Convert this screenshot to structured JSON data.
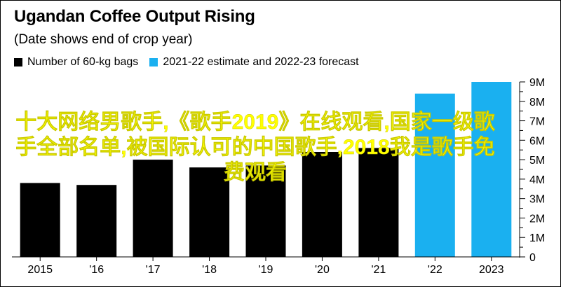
{
  "chart_data": {
    "type": "bar",
    "title": "Ugandan Coffee Output Rising",
    "subtitle": "(Date shows end of crop year)",
    "categories": [
      "2015",
      "'16",
      "'17",
      "'18",
      "'19",
      "'20",
      "'21",
      "'22",
      "2023"
    ],
    "series": [
      {
        "name": "Number of 60-kg bags",
        "color": "#000000",
        "values": [
          3.8,
          3.7,
          5.0,
          4.6,
          4.7,
          5.4,
          5.6,
          null,
          null
        ]
      },
      {
        "name": "2021-22 estimate and 2022-23 forecast",
        "color": "#1ab0f0",
        "values": [
          null,
          null,
          null,
          null,
          null,
          null,
          null,
          8.4,
          9.0
        ]
      }
    ],
    "ylim": [
      0,
      9
    ],
    "yticks": [
      "0",
      "1M",
      "2M",
      "3M",
      "4M",
      "5M",
      "6M",
      "7M",
      "8M",
      "9M"
    ],
    "legend_position": "top-left",
    "grid": false
  },
  "overlay_text": "十大网络男歌手,《歌手2019》在线观看,国家一级歌手全部名单,被国际认可的中国歌手,2018我是歌手免费观看"
}
